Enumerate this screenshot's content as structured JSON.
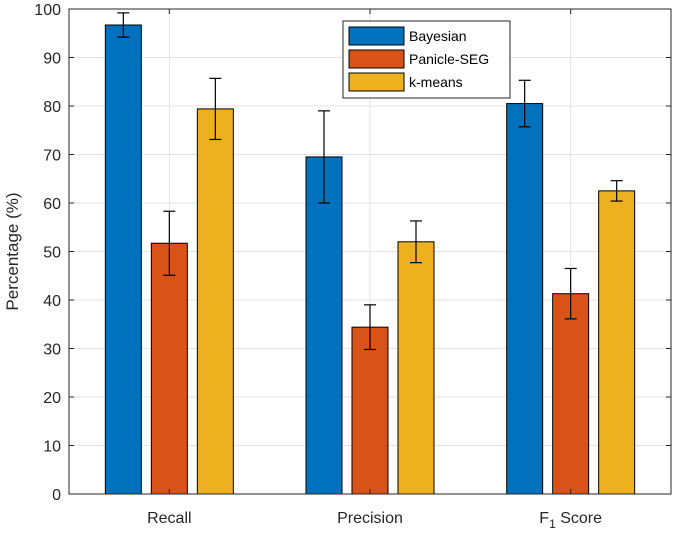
{
  "chart_data": {
    "type": "bar",
    "title": "",
    "xlabel": "",
    "ylabel": "Percentage (%)",
    "ylim": [
      0,
      100
    ],
    "yticks": [
      0,
      10,
      20,
      30,
      40,
      50,
      60,
      70,
      80,
      90,
      100
    ],
    "grid": true,
    "legend_position": "top-center",
    "categories": [
      {
        "main": "Recall",
        "sub": "",
        "suffix": ""
      },
      {
        "main": "Precision",
        "sub": "",
        "suffix": ""
      },
      {
        "main": "F",
        "sub": "1",
        "suffix": " Score"
      }
    ],
    "series": [
      {
        "name": "Bayesian",
        "color": "#0072BD",
        "values": [
          96.7,
          69.5,
          80.5
        ],
        "error": [
          2.5,
          9.5,
          4.8
        ]
      },
      {
        "name": "Panicle-SEG",
        "color": "#D95319",
        "values": [
          51.7,
          34.4,
          41.3
        ],
        "error": [
          6.6,
          4.6,
          5.2
        ]
      },
      {
        "name": "k-means",
        "color": "#EDB120",
        "values": [
          79.4,
          52.0,
          62.5
        ],
        "error": [
          6.3,
          4.3,
          2.1
        ]
      }
    ]
  }
}
